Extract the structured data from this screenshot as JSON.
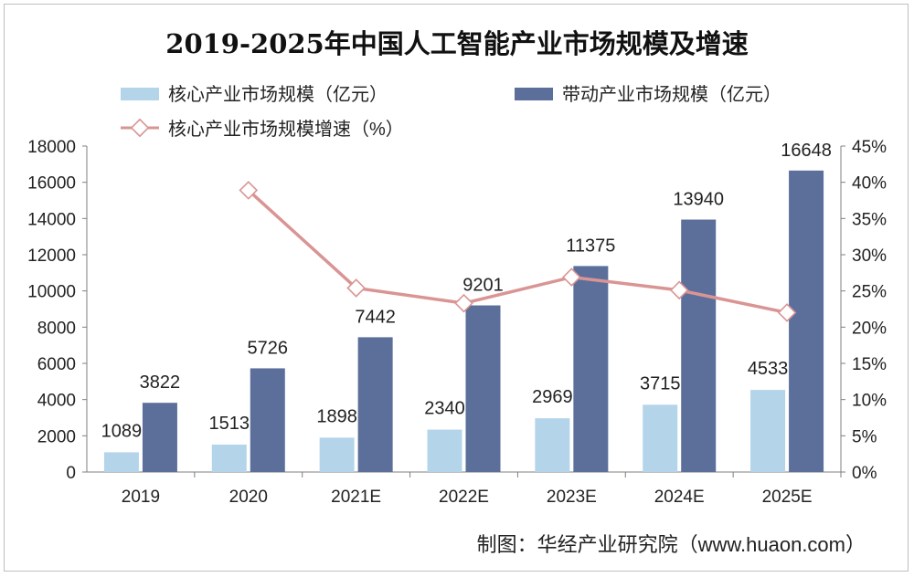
{
  "chart_data": {
    "type": "bar",
    "title": "2019-2025年中国人工智能产业市场规模及增速",
    "categories": [
      "2019",
      "2020",
      "2021E",
      "2022E",
      "2023E",
      "2024E",
      "2025E"
    ],
    "series": [
      {
        "name": "核心产业市场规模（亿元）",
        "type": "bar",
        "axis": "left",
        "color": "#b4d4ea",
        "values": [
          1089,
          1513,
          1898,
          2340,
          2969,
          3715,
          4533
        ]
      },
      {
        "name": "带动产业市场规模（亿元）",
        "type": "bar",
        "axis": "left",
        "color": "#5b6f9a",
        "values": [
          3822,
          5726,
          7442,
          9201,
          11375,
          13940,
          16648
        ]
      },
      {
        "name": "核心产业市场规模增速（%）",
        "type": "line",
        "axis": "right",
        "color": "#d99594",
        "values": [
          null,
          38.9,
          25.4,
          23.3,
          26.9,
          25.1,
          22.0
        ]
      }
    ],
    "y_left": {
      "min": 0,
      "max": 18000,
      "step": 2000,
      "ticks": [
        "0",
        "2000",
        "4000",
        "6000",
        "8000",
        "10000",
        "12000",
        "14000",
        "16000",
        "18000"
      ]
    },
    "y_right": {
      "min": 0,
      "max": 45,
      "step": 5,
      "ticks": [
        "0%",
        "5%",
        "10%",
        "15%",
        "20%",
        "25%",
        "30%",
        "35%",
        "40%",
        "45%"
      ]
    },
    "legend_position": "top",
    "grid": false,
    "source": "制图：华经产业研究院（www.huaon.com）"
  }
}
